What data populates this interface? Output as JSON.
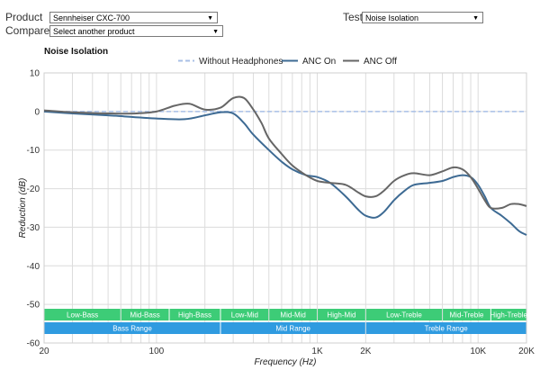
{
  "controls": {
    "product_label": "Product",
    "product_value": "Sennheiser CXC-700",
    "compare_label": "Compare",
    "compare_value": "Select another product",
    "test_label": "Test",
    "test_value": "Noise Isolation",
    "dropdown_icon": "triangle-down"
  },
  "chart_data": {
    "type": "line",
    "title": "Noise Isolation",
    "xlabel": "Frequency (Hz)",
    "ylabel": "Reduction (dB)",
    "xscale": "log",
    "xlim": [
      20,
      20000
    ],
    "ylim": [
      -60,
      10
    ],
    "yticks": [
      10,
      0,
      -10,
      -20,
      -30,
      -40,
      -50,
      -60
    ],
    "xticks": [
      {
        "value": 20,
        "label": "20"
      },
      {
        "value": 100,
        "label": "100"
      },
      {
        "value": 1000,
        "label": "1K"
      },
      {
        "value": 2000,
        "label": "2K"
      },
      {
        "value": 10000,
        "label": "10K"
      },
      {
        "value": 20000,
        "label": "20K"
      }
    ],
    "grid": true,
    "legend_position": "top-center",
    "series": [
      {
        "name": "Without Headphones",
        "color": "#a8bfe6",
        "dashed": true,
        "x": [
          20,
          20000
        ],
        "y": [
          0,
          0
        ]
      },
      {
        "name": "ANC On",
        "color": "#3d6a93",
        "dashed": false,
        "x": [
          20,
          30,
          50,
          100,
          150,
          200,
          250,
          300,
          350,
          400,
          500,
          600,
          700,
          850,
          1000,
          1200,
          1500,
          1800,
          2000,
          2300,
          2600,
          3000,
          3500,
          4000,
          5000,
          6000,
          7000,
          8000,
          9000,
          10000,
          11000,
          12000,
          14000,
          16000,
          18000,
          20000
        ],
        "y": [
          0,
          -0.5,
          -1,
          -1.8,
          -2,
          -1,
          -0.2,
          -0.5,
          -3,
          -6,
          -10,
          -13,
          -15,
          -16.5,
          -17,
          -18.5,
          -22,
          -25.5,
          -27,
          -27.5,
          -26,
          -23,
          -20.5,
          -19,
          -18.5,
          -18,
          -17,
          -16.5,
          -17,
          -19,
          -22,
          -25,
          -27,
          -29,
          -31,
          -32
        ]
      },
      {
        "name": "ANC Off",
        "color": "#666666",
        "dashed": false,
        "x": [
          20,
          30,
          50,
          75,
          100,
          130,
          160,
          200,
          250,
          300,
          350,
          400,
          450,
          500,
          600,
          700,
          850,
          1000,
          1200,
          1500,
          1800,
          2000,
          2300,
          2600,
          3000,
          3500,
          4000,
          5000,
          6000,
          7000,
          8000,
          9000,
          10000,
          11000,
          12000,
          14000,
          16000,
          18000,
          20000
        ],
        "y": [
          0.3,
          -0.2,
          -0.5,
          -0.5,
          0,
          1.5,
          2,
          0.5,
          1,
          3.5,
          3.5,
          0.5,
          -3,
          -7,
          -11,
          -14,
          -16.5,
          -18,
          -18.5,
          -19,
          -21,
          -22,
          -22,
          -20.5,
          -18,
          -16.5,
          -16,
          -16.5,
          -15.5,
          -14.5,
          -15,
          -17,
          -20,
          -23,
          -25,
          -25,
          -24,
          -24,
          -24.5
        ]
      }
    ],
    "bands": [
      {
        "label": "Low-Bass",
        "from": 20,
        "to": 60,
        "row": 1,
        "color": "#3dcc77"
      },
      {
        "label": "Mid-Bass",
        "from": 60,
        "to": 120,
        "row": 1,
        "color": "#3dcc77"
      },
      {
        "label": "High-Bass",
        "from": 120,
        "to": 250,
        "row": 1,
        "color": "#3dcc77"
      },
      {
        "label": "Low-Mid",
        "from": 250,
        "to": 500,
        "row": 1,
        "color": "#3dcc77"
      },
      {
        "label": "Mid-Mid",
        "from": 500,
        "to": 1000,
        "row": 1,
        "color": "#3dcc77"
      },
      {
        "label": "High-Mid",
        "from": 1000,
        "to": 2000,
        "row": 1,
        "color": "#3dcc77"
      },
      {
        "label": "Low-Treble",
        "from": 2000,
        "to": 6000,
        "row": 1,
        "color": "#3dcc77"
      },
      {
        "label": "Mid-Treble",
        "from": 6000,
        "to": 12000,
        "row": 1,
        "color": "#3dcc77"
      },
      {
        "label": "High-Treble",
        "from": 12000,
        "to": 20000,
        "row": 1,
        "color": "#3dcc77"
      },
      {
        "label": "Bass Range",
        "from": 20,
        "to": 250,
        "row": 2,
        "color": "#2f9be0"
      },
      {
        "label": "Mid Range",
        "from": 250,
        "to": 2000,
        "row": 2,
        "color": "#2f9be0"
      },
      {
        "label": "Treble Range",
        "from": 2000,
        "to": 20000,
        "row": 2,
        "color": "#2f9be0"
      }
    ]
  }
}
